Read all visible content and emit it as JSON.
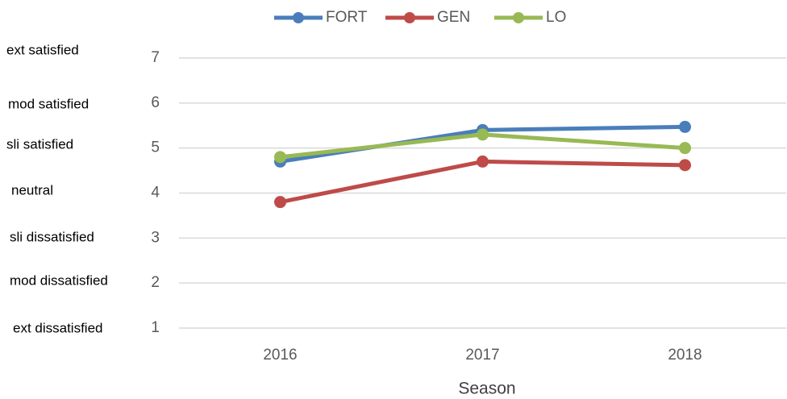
{
  "chart_data": {
    "type": "line",
    "x_label": "Season",
    "categories": [
      "2016",
      "2017",
      "2018"
    ],
    "series": [
      {
        "name": "FORT",
        "color": "#4a7ebb",
        "values": [
          4.7,
          5.4,
          5.47
        ]
      },
      {
        "name": "GEN",
        "color": "#be4b48",
        "values": [
          3.8,
          4.7,
          4.62
        ]
      },
      {
        "name": "LO",
        "color": "#98b954",
        "values": [
          4.8,
          5.3,
          5.0
        ]
      }
    ],
    "ylim": [
      1,
      7
    ],
    "yticks": [
      1,
      2,
      3,
      4,
      5,
      6,
      7
    ],
    "grid": true,
    "legend": "top",
    "scale_labels": [
      "ext satisfied",
      "mod satisfied",
      "sli satisfied",
      "neutral",
      "sli dissatisfied",
      "mod dissatisfied",
      "ext dissatisfied"
    ]
  }
}
